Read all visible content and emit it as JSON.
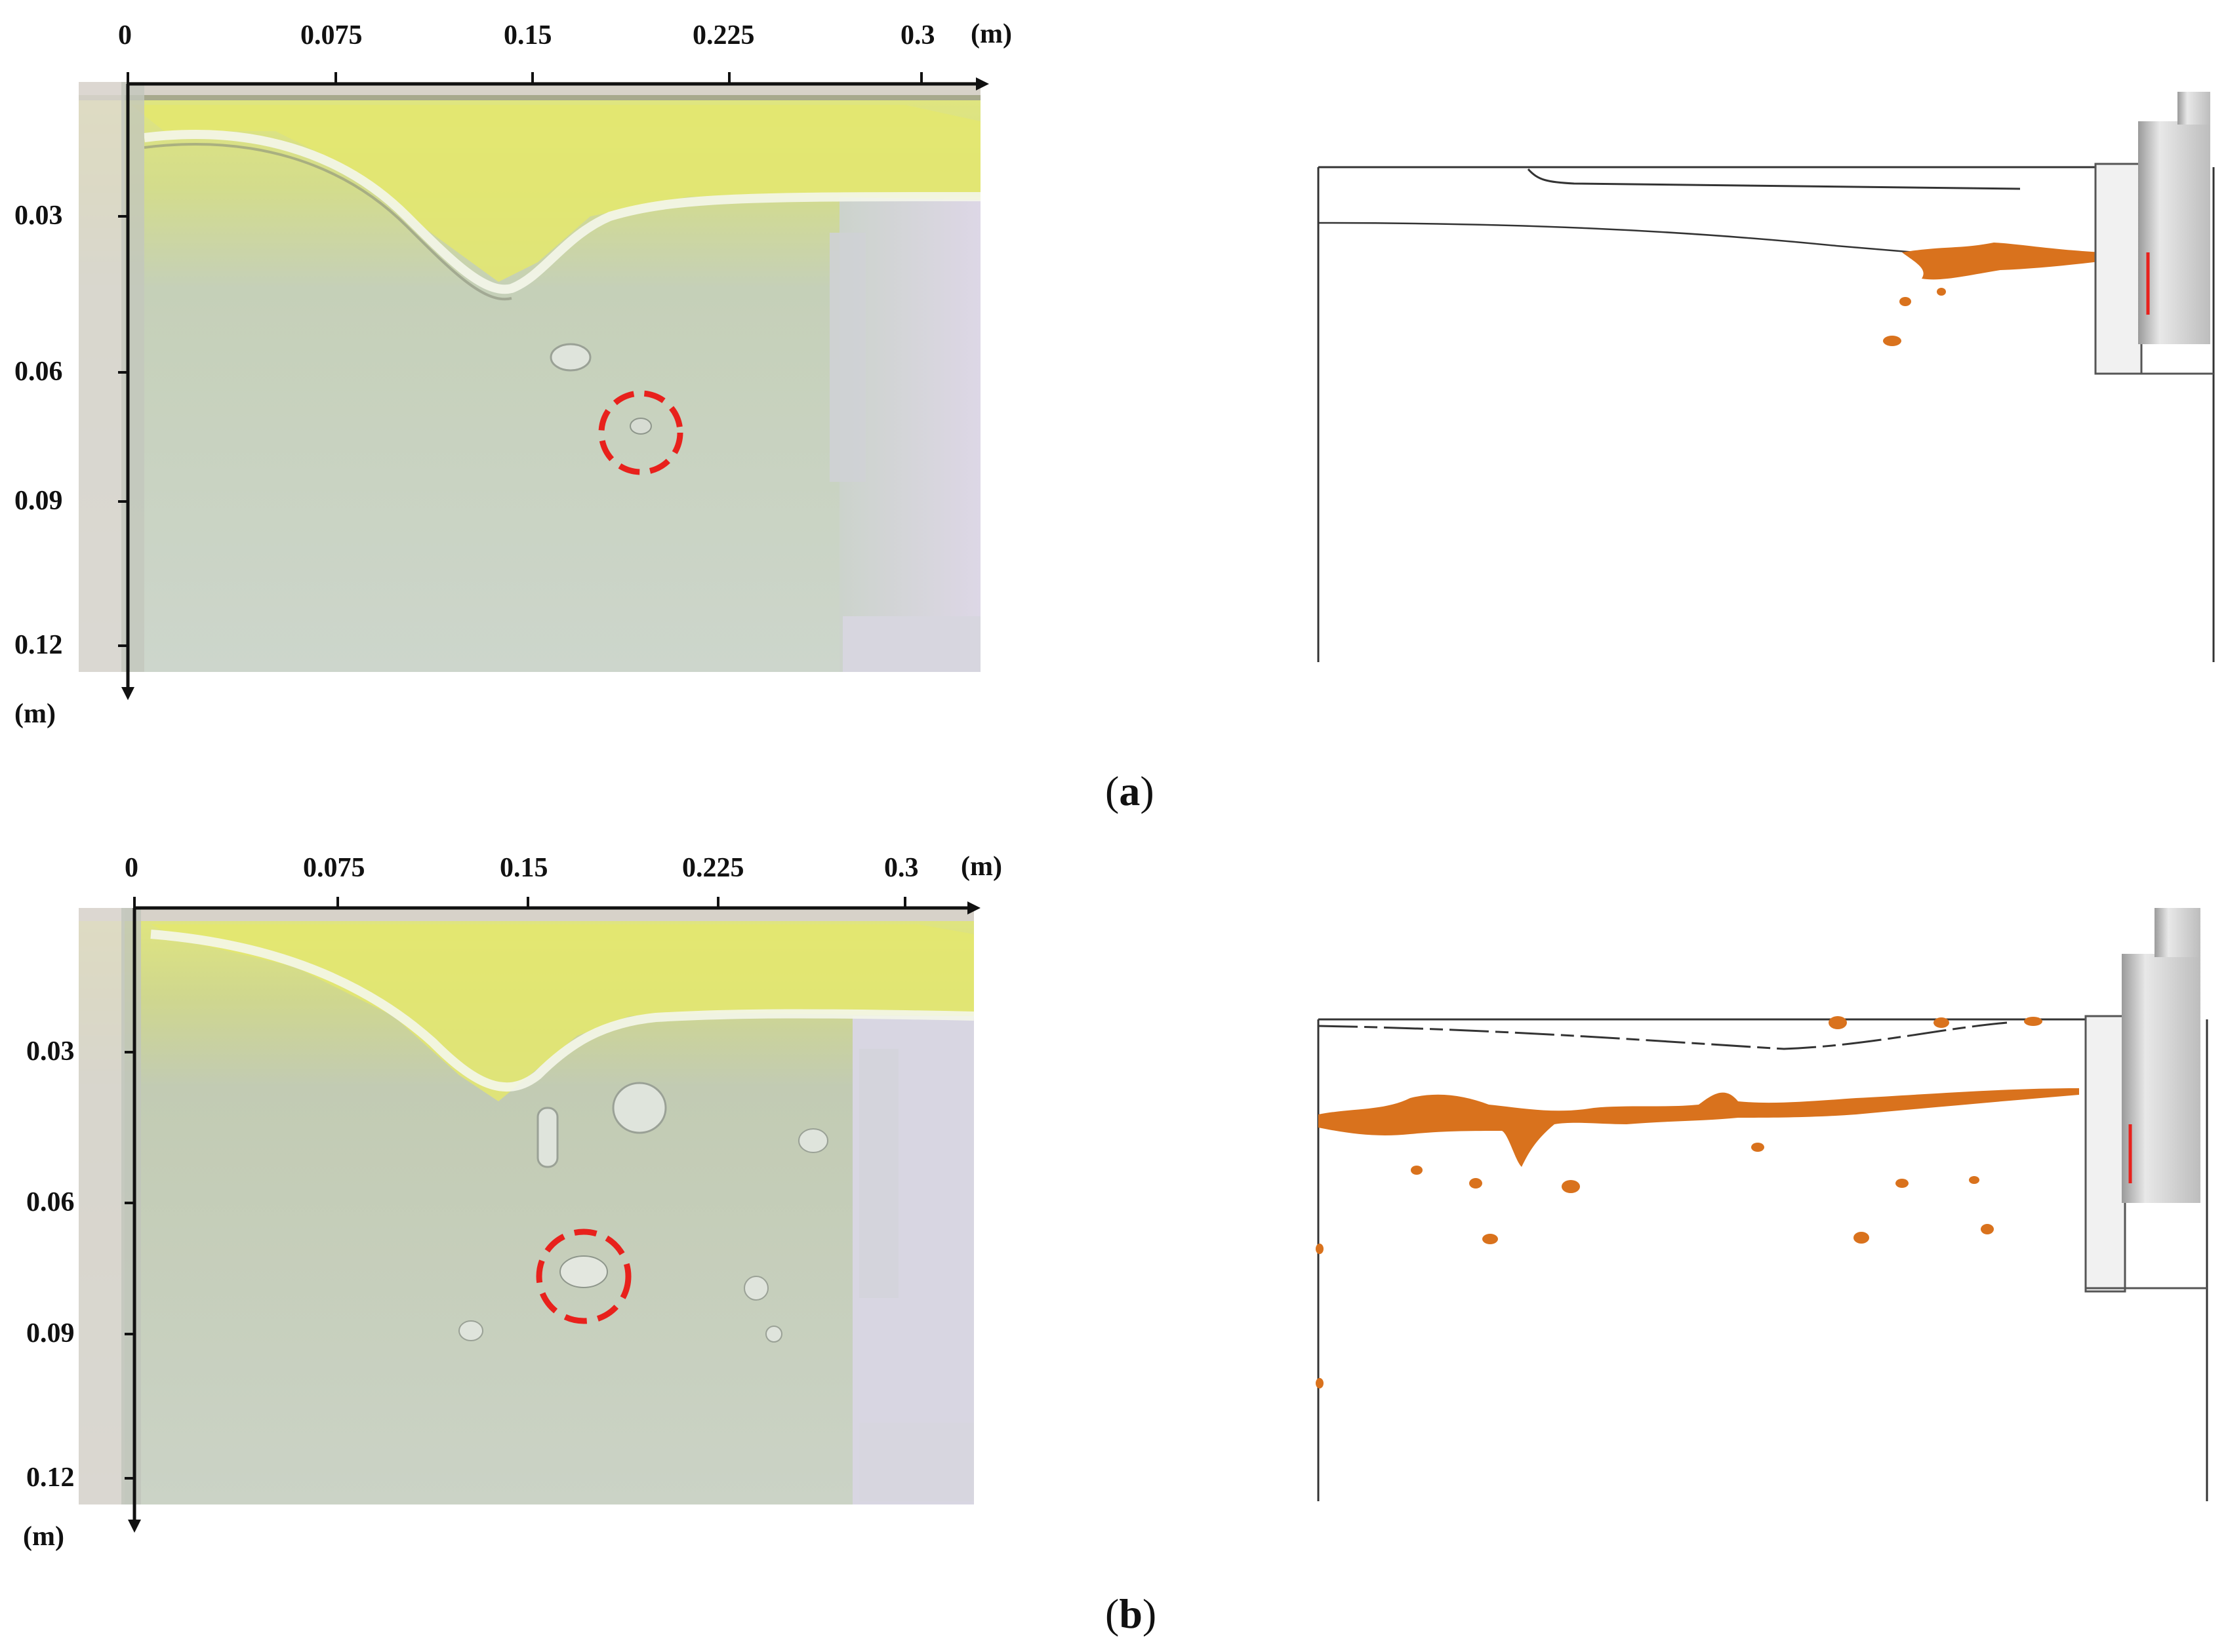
{
  "panels": [
    {
      "caption_letter": "a",
      "x_ticks": [
        "0",
        "0.075",
        "0.15",
        "0.225",
        "0.3"
      ],
      "x_unit": "(m)",
      "y_ticks": [
        "0.03",
        "0.06",
        "0.09",
        "0.12"
      ],
      "y_unit": "(m)"
    },
    {
      "caption_letter": "b",
      "x_ticks": [
        "0",
        "0.075",
        "0.15",
        "0.225",
        "0.3"
      ],
      "x_unit": "(m)",
      "y_ticks": [
        "0.03",
        "0.06",
        "0.09",
        "0.12"
      ],
      "y_unit": "(m)"
    }
  ],
  "colors": {
    "water_top": "#d9e47a",
    "water_body": "#c9d4c4",
    "highlight_circle": "#e8211c",
    "simulation_oil": "#d9721d",
    "simulation_line": "#222222",
    "electrode_gray": "#cfcfcf"
  }
}
